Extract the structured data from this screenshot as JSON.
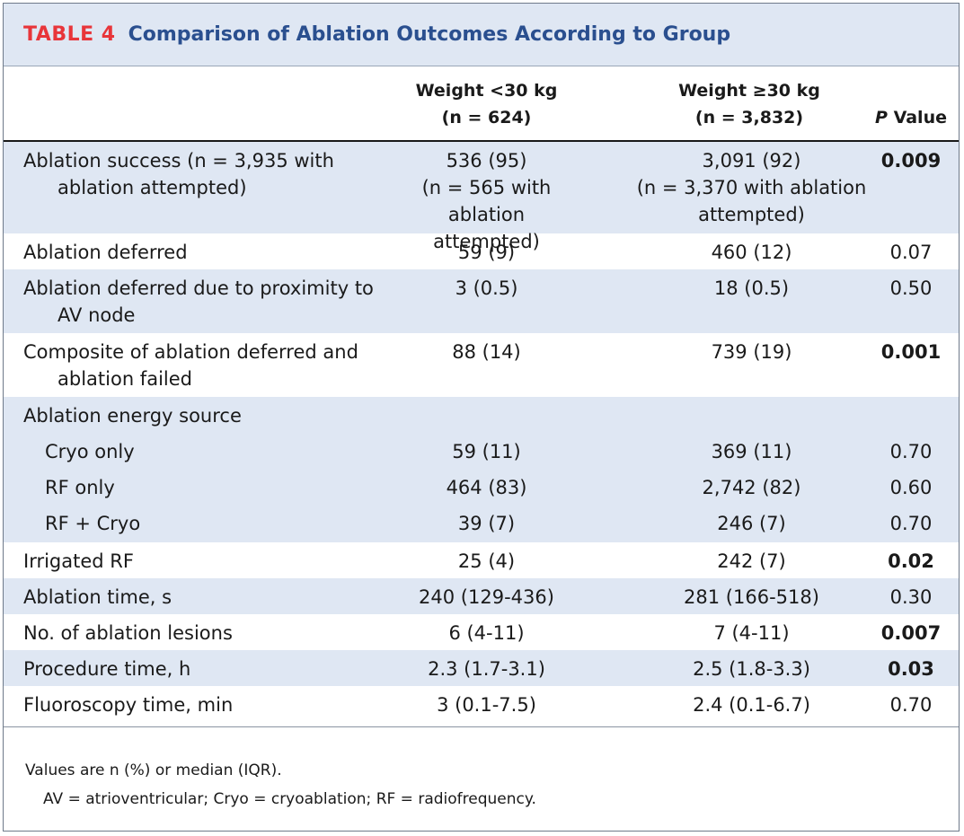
{
  "title": {
    "label": "TABLE 4",
    "text": "Comparison of Ablation Outcomes According to Group"
  },
  "header": {
    "col1_line1": "Weight <30 kg",
    "col1_line2": "(n = 624)",
    "col2_line1": "Weight ≥30 kg",
    "col2_line2": "(n = 3,832)",
    "col3_italic": "P",
    "col3_rest": " Value"
  },
  "rows": [
    {
      "label_line1": "Ablation success (n = 3,935 with",
      "label_line2": "ablation attempted)",
      "v1_line1": "536 (95)",
      "v1_line2": "(n = 565 with ablation",
      "v1_line3": "attempted)",
      "v2_line1": "3,091 (92)",
      "v2_line2": "(n = 3,370 with ablation",
      "v2_line3": "attempted)",
      "p": "0.009"
    },
    {
      "label": "Ablation deferred",
      "v1": "59 (9)",
      "v2": "460 (12)",
      "p": "0.07"
    },
    {
      "label_line1": "Ablation deferred due to proximity to",
      "label_line2": "AV node",
      "v1": "3 (0.5)",
      "v2": "18 (0.5)",
      "p": "0.50"
    },
    {
      "label_line1": "Composite of ablation deferred and",
      "label_line2": "ablation failed",
      "v1": "88 (14)",
      "v2": "739 (19)",
      "p": "0.001"
    },
    {
      "label": "Ablation energy source"
    },
    {
      "label": "Cryo only",
      "v1": "59 (11)",
      "v2": "369 (11)",
      "p": "0.70"
    },
    {
      "label": "RF only",
      "v1": "464 (83)",
      "v2": "2,742 (82)",
      "p": "0.60"
    },
    {
      "label": "RF + Cryo",
      "v1": "39 (7)",
      "v2": "246 (7)",
      "p": "0.70"
    },
    {
      "label": "Irrigated RF",
      "v1": "25 (4)",
      "v2": "242 (7)",
      "p": "0.02"
    },
    {
      "label": "Ablation time, s",
      "v1": "240 (129-436)",
      "v2": "281 (166-518)",
      "p": "0.30"
    },
    {
      "label": "No. of ablation lesions",
      "v1": "6 (4-11)",
      "v2": "7 (4-11)",
      "p": "0.007"
    },
    {
      "label": "Procedure time, h",
      "v1": "2.3 (1.7-3.1)",
      "v2": "2.5 (1.8-3.3)",
      "p": "0.03"
    },
    {
      "label": "Fluoroscopy time, min",
      "v1": "3 (0.1-7.5)",
      "v2": "2.4 (0.1-6.7)",
      "p": "0.70"
    }
  ],
  "footnotes": {
    "line1": "Values are n (%) or median (IQR).",
    "line2": "AV = atrioventricular; Cryo = cryoablation; RF = radiofrequency."
  },
  "colors": {
    "label_red": "#e8353a",
    "title_blue": "#2a4f8f",
    "shade": "#dfe7f3"
  }
}
